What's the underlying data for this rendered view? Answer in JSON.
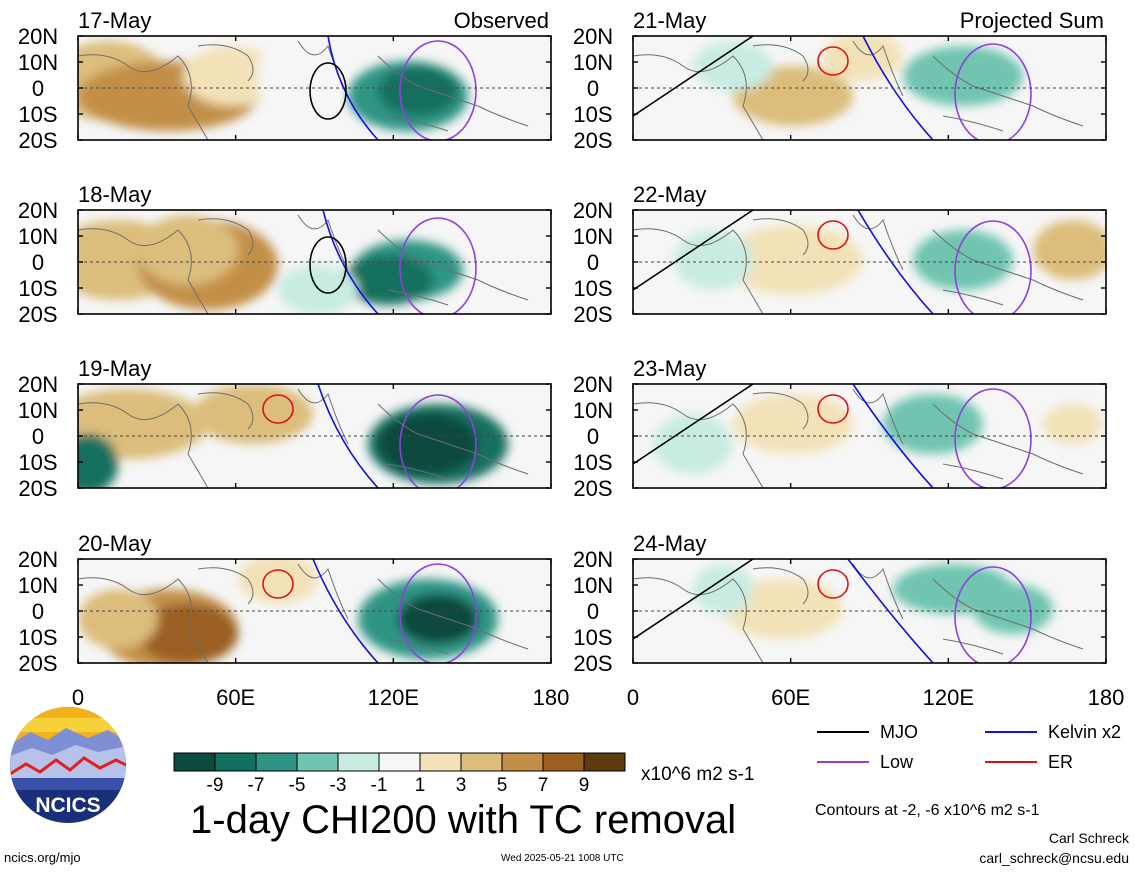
{
  "footer": {
    "site": "ncics.org/mjo",
    "timestamp": "Wed 2025-05-21 1008 UTC",
    "author": "Carl Schreck",
    "email": "carl_schreck@ncsu.edu"
  },
  "logo": {
    "text": "NCICS"
  },
  "figure_title": "1-day CHI200 with TC removal",
  "contour_note": "Contours at -2, -6 x10^6 m2 s-1",
  "colorbar": {
    "units": "x10^6 m2 s-1",
    "labels": [
      "-9",
      "-7",
      "-5",
      "-3",
      "-1",
      "1",
      "3",
      "5",
      "7",
      "9"
    ],
    "colors": [
      "#0b4a3c",
      "#13705f",
      "#2e9585",
      "#70c4b0",
      "#c8ece2",
      "#f6f6f6",
      "#f3e2b8",
      "#dcbd7c",
      "#c38f47",
      "#9b5f20",
      "#5e3a10"
    ]
  },
  "legend": [
    {
      "label": "MJO",
      "color": "#000000"
    },
    {
      "label": "Kelvin x2",
      "color": "#1010e0"
    },
    {
      "label": "Low",
      "color": "#9040e0"
    },
    {
      "label": "ER",
      "color": "#e01010"
    }
  ],
  "chart_data": {
    "type": "heatmap",
    "x_ticks": [
      "0",
      "60E",
      "120E",
      "180"
    ],
    "y_ticks": [
      "20N",
      "10N",
      "0",
      "10S",
      "20S"
    ],
    "xlim": [
      0,
      180
    ],
    "ylim": [
      -20,
      20
    ],
    "columns": [
      {
        "header": "Observed",
        "dates": [
          "17-May",
          "18-May",
          "19-May",
          "20-May"
        ]
      },
      {
        "header": "Projected Sum",
        "dates": [
          "21-May",
          "22-May",
          "23-May",
          "24-May"
        ]
      }
    ],
    "legend_placement": "bottom-right"
  }
}
